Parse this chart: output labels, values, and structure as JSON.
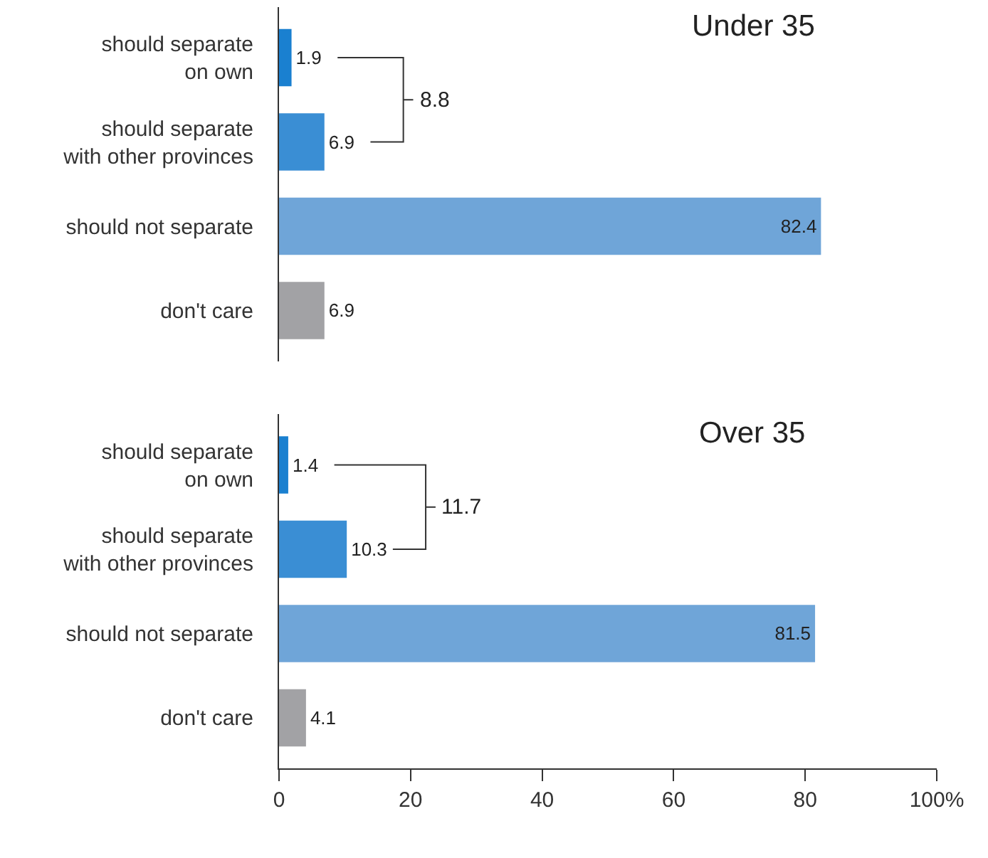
{
  "chart_data": [
    {
      "type": "bar",
      "orientation": "horizontal",
      "title": "Under 35",
      "categories": [
        "should separate\non own",
        "should separate\nwith other provinces",
        "should not separate",
        "don't care"
      ],
      "values": [
        1.9,
        6.9,
        82.4,
        6.9
      ],
      "colors": [
        "#1a80d0",
        "#3a8ed4",
        "#6fa5d8",
        "#a2a2a5"
      ],
      "data_labels": true,
      "xlim": [
        0,
        100
      ],
      "tick_labels": "y",
      "annotations": [
        "8.8"
      ]
    },
    {
      "type": "bar",
      "orientation": "horizontal",
      "title": "Over 35",
      "categories": [
        "should separate\non own",
        "should separate\nwith other provinces",
        "should not separate",
        "don't care"
      ],
      "values": [
        1.4,
        10.3,
        81.5,
        4.1
      ],
      "colors": [
        "#1a80d0",
        "#3a8ed4",
        "#6fa5d8",
        "#a2a2a5"
      ],
      "data_labels": true,
      "xlim": [
        0,
        100
      ],
      "xticks": [
        0,
        20,
        40,
        60,
        80,
        {
          "value": 100,
          "label": "100%"
        }
      ],
      "annotations": [
        "11.7"
      ]
    }
  ]
}
